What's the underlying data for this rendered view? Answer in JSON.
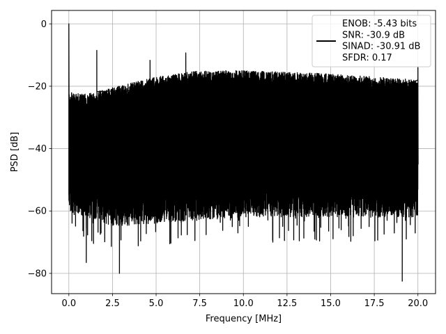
{
  "chart_data": {
    "type": "line",
    "title": "",
    "xlabel": "Frequency [MHz]",
    "ylabel": "PSD [dB]",
    "xlim": [
      -0.99,
      21.01
    ],
    "ylim": [
      -86.5,
      4.3
    ],
    "xticks": [
      0.0,
      2.5,
      5.0,
      7.5,
      10.0,
      12.5,
      15.0,
      17.5,
      20.0
    ],
    "xtick_labels": [
      "0.0",
      "2.5",
      "5.0",
      "7.5",
      "10.0",
      "12.5",
      "15.0",
      "17.5",
      "20.0"
    ],
    "yticks": [
      0,
      -20,
      -40,
      -60,
      -80
    ],
    "ytick_labels": [
      "0",
      "−20",
      "−40",
      "−60",
      "−80"
    ],
    "grid": true,
    "legend_position": "top-right",
    "series": [
      {
        "name": "ENOB: -5.43 bits\nSNR: -30.9 dB\nSINAD: -30.91 dB\nSFDR: 0.17",
        "legend_lines": [
          "ENOB: -5.43 bits",
          "SNR: -30.9 dB",
          "SINAD: -30.91 dB",
          "SFDR: 0.17"
        ],
        "color": "#000000",
        "description": "dense noise-like PSD spectrum",
        "peak": {
          "x": 0.0,
          "y": 0.0
        },
        "spurs": [
          {
            "x": 1.6,
            "y": -8.5
          },
          {
            "x": 4.65,
            "y": -11.7
          },
          {
            "x": 6.7,
            "y": -9.3
          },
          {
            "x": 20.0,
            "y": -14.0
          }
        ],
        "deep_nulls": [
          {
            "x": 2.9,
            "y": -80.0
          },
          {
            "x": 19.1,
            "y": -82.5
          },
          {
            "x": 1.0,
            "y": -76.5
          }
        ],
        "upper_envelope": [
          {
            "x": 0.0,
            "y": -22.0
          },
          {
            "x": 1.0,
            "y": -22.5
          },
          {
            "x": 2.5,
            "y": -20.5
          },
          {
            "x": 5.0,
            "y": -17.0
          },
          {
            "x": 7.5,
            "y": -15.0
          },
          {
            "x": 10.0,
            "y": -15.0
          },
          {
            "x": 12.5,
            "y": -15.5
          },
          {
            "x": 15.0,
            "y": -16.0
          },
          {
            "x": 17.5,
            "y": -17.0
          },
          {
            "x": 20.0,
            "y": -18.0
          }
        ],
        "lower_envelope": [
          {
            "x": 0.0,
            "y": -58.0
          },
          {
            "x": 2.5,
            "y": -63.0
          },
          {
            "x": 5.0,
            "y": -62.0
          },
          {
            "x": 10.0,
            "y": -60.0
          },
          {
            "x": 15.0,
            "y": -60.0
          },
          {
            "x": 20.0,
            "y": -60.0
          }
        ]
      }
    ]
  }
}
